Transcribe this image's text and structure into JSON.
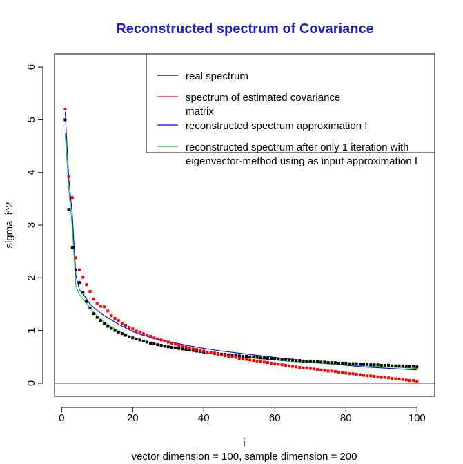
{
  "chart_data": {
    "type": "scatter",
    "title": "Reconstructed spectrum of Covariance",
    "xlabel": "i",
    "sub": "vector dimension = 100, sample dimension = 200",
    "ylabel": "sigma_i^2",
    "xlim": [
      -2,
      105
    ],
    "ylim": [
      -0.25,
      6.25
    ],
    "xticks": [
      0,
      20,
      40,
      60,
      80,
      100
    ],
    "yticks": [
      0,
      1,
      2,
      3,
      4,
      5,
      6
    ],
    "hline": 0,
    "colors": {
      "real": "#000000",
      "estimated": "#ff0000",
      "approx": "#0000ff",
      "iter": "#00cc00",
      "title": "#1f1fc8"
    },
    "legend": [
      {
        "label": [
          "real spectrum"
        ],
        "color": "#000000"
      },
      {
        "label": [
          "spectrum of estimated covariance",
          "matrix"
        ],
        "color": "#ff0000"
      },
      {
        "label": [
          "reconstructed spectrum approximation I"
        ],
        "color": "#0000ff"
      },
      {
        "label": [
          "reconstructed spectrum after only 1 iteration with",
          "eigenvector-method using as input approximation I"
        ],
        "color": "#00cc00"
      }
    ],
    "series": [
      {
        "name": "real spectrum",
        "style": "points",
        "color": "#000000",
        "x": [
          1,
          2,
          3,
          4,
          5,
          6,
          7,
          8,
          9,
          10,
          11,
          12,
          13,
          14,
          15,
          16,
          17,
          18,
          19,
          20,
          21,
          22,
          23,
          24,
          25,
          26,
          27,
          28,
          29,
          30,
          31,
          32,
          33,
          34,
          35,
          36,
          37,
          38,
          39,
          40,
          41,
          42,
          43,
          44,
          45,
          46,
          47,
          48,
          49,
          50,
          51,
          52,
          53,
          54,
          55,
          56,
          57,
          58,
          59,
          60,
          61,
          62,
          63,
          64,
          65,
          66,
          67,
          68,
          69,
          70,
          71,
          72,
          73,
          74,
          75,
          76,
          77,
          78,
          79,
          80,
          81,
          82,
          83,
          84,
          85,
          86,
          87,
          88,
          89,
          90,
          91,
          92,
          93,
          94,
          95,
          96,
          97,
          98,
          99,
          100
        ],
        "y": [
          5.0,
          3.3,
          2.58,
          2.15,
          1.91,
          1.72,
          1.55,
          1.43,
          1.32,
          1.25,
          1.19,
          1.13,
          1.08,
          1.04,
          1.0,
          0.97,
          0.94,
          0.91,
          0.88,
          0.86,
          0.84,
          0.82,
          0.8,
          0.78,
          0.76,
          0.75,
          0.73,
          0.72,
          0.7,
          0.69,
          0.68,
          0.67,
          0.66,
          0.65,
          0.64,
          0.63,
          0.62,
          0.61,
          0.6,
          0.59,
          0.58,
          0.58,
          0.57,
          0.56,
          0.55,
          0.55,
          0.54,
          0.53,
          0.53,
          0.52,
          0.51,
          0.51,
          0.5,
          0.5,
          0.49,
          0.48,
          0.48,
          0.47,
          0.47,
          0.46,
          0.46,
          0.45,
          0.45,
          0.44,
          0.44,
          0.43,
          0.43,
          0.42,
          0.42,
          0.42,
          0.41,
          0.41,
          0.4,
          0.4,
          0.39,
          0.39,
          0.39,
          0.38,
          0.38,
          0.38,
          0.37,
          0.37,
          0.37,
          0.36,
          0.36,
          0.36,
          0.35,
          0.35,
          0.35,
          0.34,
          0.34,
          0.34,
          0.33,
          0.33,
          0.33,
          0.33,
          0.32,
          0.32,
          0.32,
          0.31
        ]
      },
      {
        "name": "spectrum of estimated covariance matrix",
        "style": "points",
        "color": "#ff0000",
        "x": [
          1,
          2,
          3,
          4,
          5,
          6,
          7,
          8,
          9,
          10,
          11,
          12,
          13,
          14,
          15,
          16,
          17,
          18,
          19,
          20,
          21,
          22,
          23,
          24,
          25,
          26,
          27,
          28,
          29,
          30,
          31,
          32,
          33,
          34,
          35,
          36,
          37,
          38,
          39,
          40,
          41,
          42,
          43,
          44,
          45,
          46,
          47,
          48,
          49,
          50,
          51,
          52,
          53,
          54,
          55,
          56,
          57,
          58,
          59,
          60,
          61,
          62,
          63,
          64,
          65,
          66,
          67,
          68,
          69,
          70,
          71,
          72,
          73,
          74,
          75,
          76,
          77,
          78,
          79,
          80,
          81,
          82,
          83,
          84,
          85,
          86,
          87,
          88,
          89,
          90,
          91,
          92,
          93,
          94,
          95,
          96,
          97,
          98,
          99,
          100
        ],
        "y": [
          5.2,
          3.92,
          3.52,
          2.38,
          2.15,
          2.01,
          1.87,
          1.74,
          1.6,
          1.51,
          1.46,
          1.45,
          1.37,
          1.28,
          1.23,
          1.19,
          1.14,
          1.1,
          1.06,
          1.03,
          0.99,
          0.97,
          0.94,
          0.91,
          0.89,
          0.86,
          0.84,
          0.82,
          0.8,
          0.78,
          0.76,
          0.74,
          0.72,
          0.7,
          0.69,
          0.67,
          0.65,
          0.64,
          0.62,
          0.61,
          0.59,
          0.58,
          0.56,
          0.55,
          0.54,
          0.52,
          0.51,
          0.5,
          0.49,
          0.47,
          0.46,
          0.45,
          0.44,
          0.43,
          0.42,
          0.41,
          0.4,
          0.39,
          0.38,
          0.37,
          0.36,
          0.35,
          0.34,
          0.33,
          0.32,
          0.31,
          0.3,
          0.29,
          0.29,
          0.28,
          0.27,
          0.26,
          0.25,
          0.24,
          0.23,
          0.23,
          0.22,
          0.21,
          0.2,
          0.19,
          0.18,
          0.18,
          0.17,
          0.16,
          0.15,
          0.14,
          0.14,
          0.13,
          0.12,
          0.11,
          0.11,
          0.1,
          0.09,
          0.08,
          0.08,
          0.07,
          0.06,
          0.05,
          0.05,
          0.04
        ]
      },
      {
        "name": "reconstructed spectrum approximation I",
        "style": "line",
        "color": "#0000ff",
        "x": [
          1,
          2,
          3,
          4,
          5,
          6,
          7,
          8,
          9,
          10,
          12,
          14,
          16,
          18,
          20,
          22,
          25,
          28,
          30,
          33,
          36,
          40,
          45,
          50,
          55,
          60,
          65,
          70,
          75,
          80,
          85,
          90,
          95,
          100
        ],
        "y": [
          5.15,
          3.9,
          3.2,
          2.05,
          1.78,
          1.7,
          1.6,
          1.5,
          1.44,
          1.38,
          1.28,
          1.2,
          1.12,
          1.05,
          0.98,
          0.93,
          0.87,
          0.82,
          0.79,
          0.75,
          0.71,
          0.66,
          0.61,
          0.57,
          0.53,
          0.49,
          0.45,
          0.41,
          0.37,
          0.34,
          0.31,
          0.29,
          0.27,
          0.25
        ]
      },
      {
        "name": "reconstructed spectrum after only 1 iteration with eigenvector-method using as input approximation I",
        "style": "line",
        "color": "#00cc00",
        "x": [
          1,
          2,
          3,
          4,
          5,
          6,
          7,
          8,
          9,
          10,
          12,
          14,
          16,
          18,
          20,
          22,
          25,
          28,
          30,
          35,
          40,
          45,
          50,
          55,
          60,
          65,
          70,
          75,
          80,
          85,
          90,
          95,
          100
        ],
        "y": [
          4.75,
          3.7,
          2.95,
          1.85,
          1.68,
          1.6,
          1.52,
          1.43,
          1.35,
          1.28,
          1.16,
          1.07,
          0.99,
          0.93,
          0.87,
          0.83,
          0.77,
          0.72,
          0.69,
          0.63,
          0.58,
          0.54,
          0.5,
          0.47,
          0.44,
          0.41,
          0.39,
          0.37,
          0.35,
          0.33,
          0.31,
          0.3,
          0.28
        ]
      }
    ]
  }
}
